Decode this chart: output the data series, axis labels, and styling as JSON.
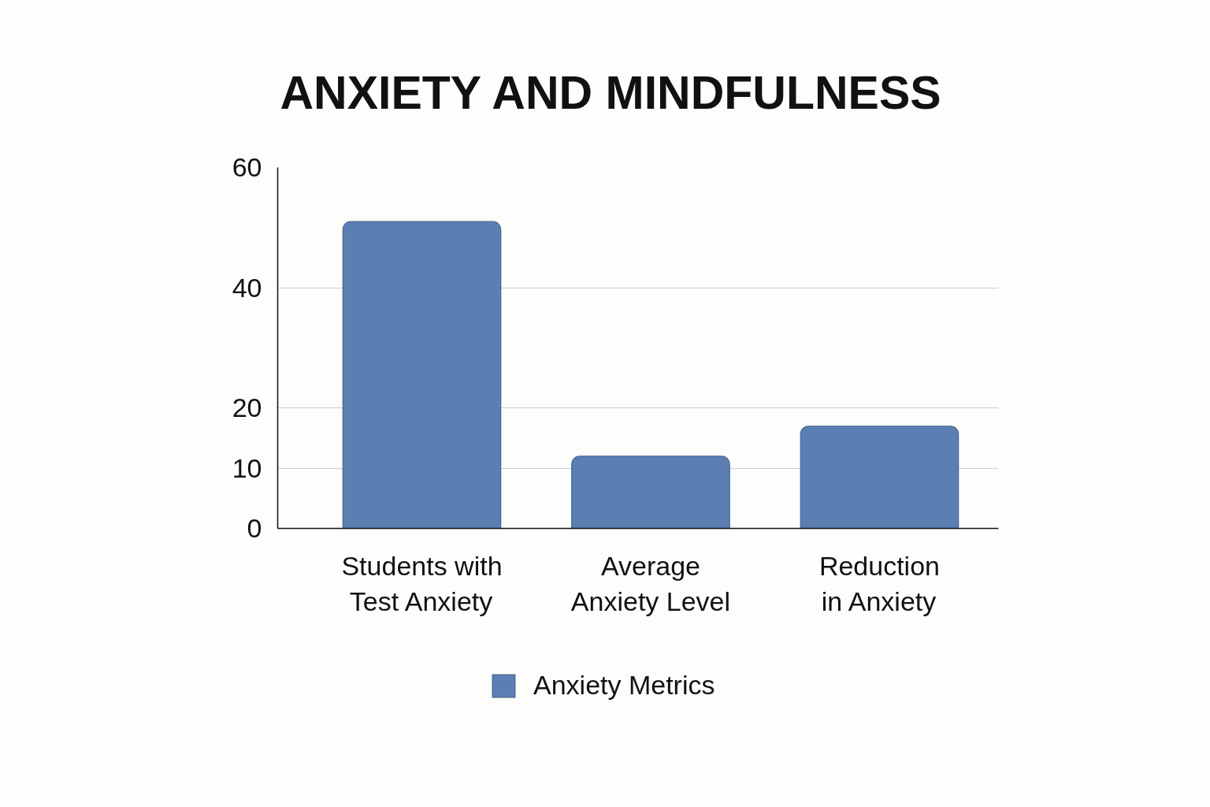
{
  "chart_data": {
    "type": "bar",
    "title": "ANXIETY AND MINDFULNESS",
    "categories": [
      "Students with Test Anxiety",
      "Average Anxiety Level",
      "Reduction in Anxiety"
    ],
    "series": [
      {
        "name": "Anxiety Metrics",
        "color": "#5b7fb3",
        "values": [
          51,
          12,
          17
        ]
      }
    ],
    "ylim": [
      0,
      60
    ],
    "yticks": [
      0,
      10,
      20,
      40,
      60
    ],
    "grid": "y",
    "legend": "bottom"
  }
}
